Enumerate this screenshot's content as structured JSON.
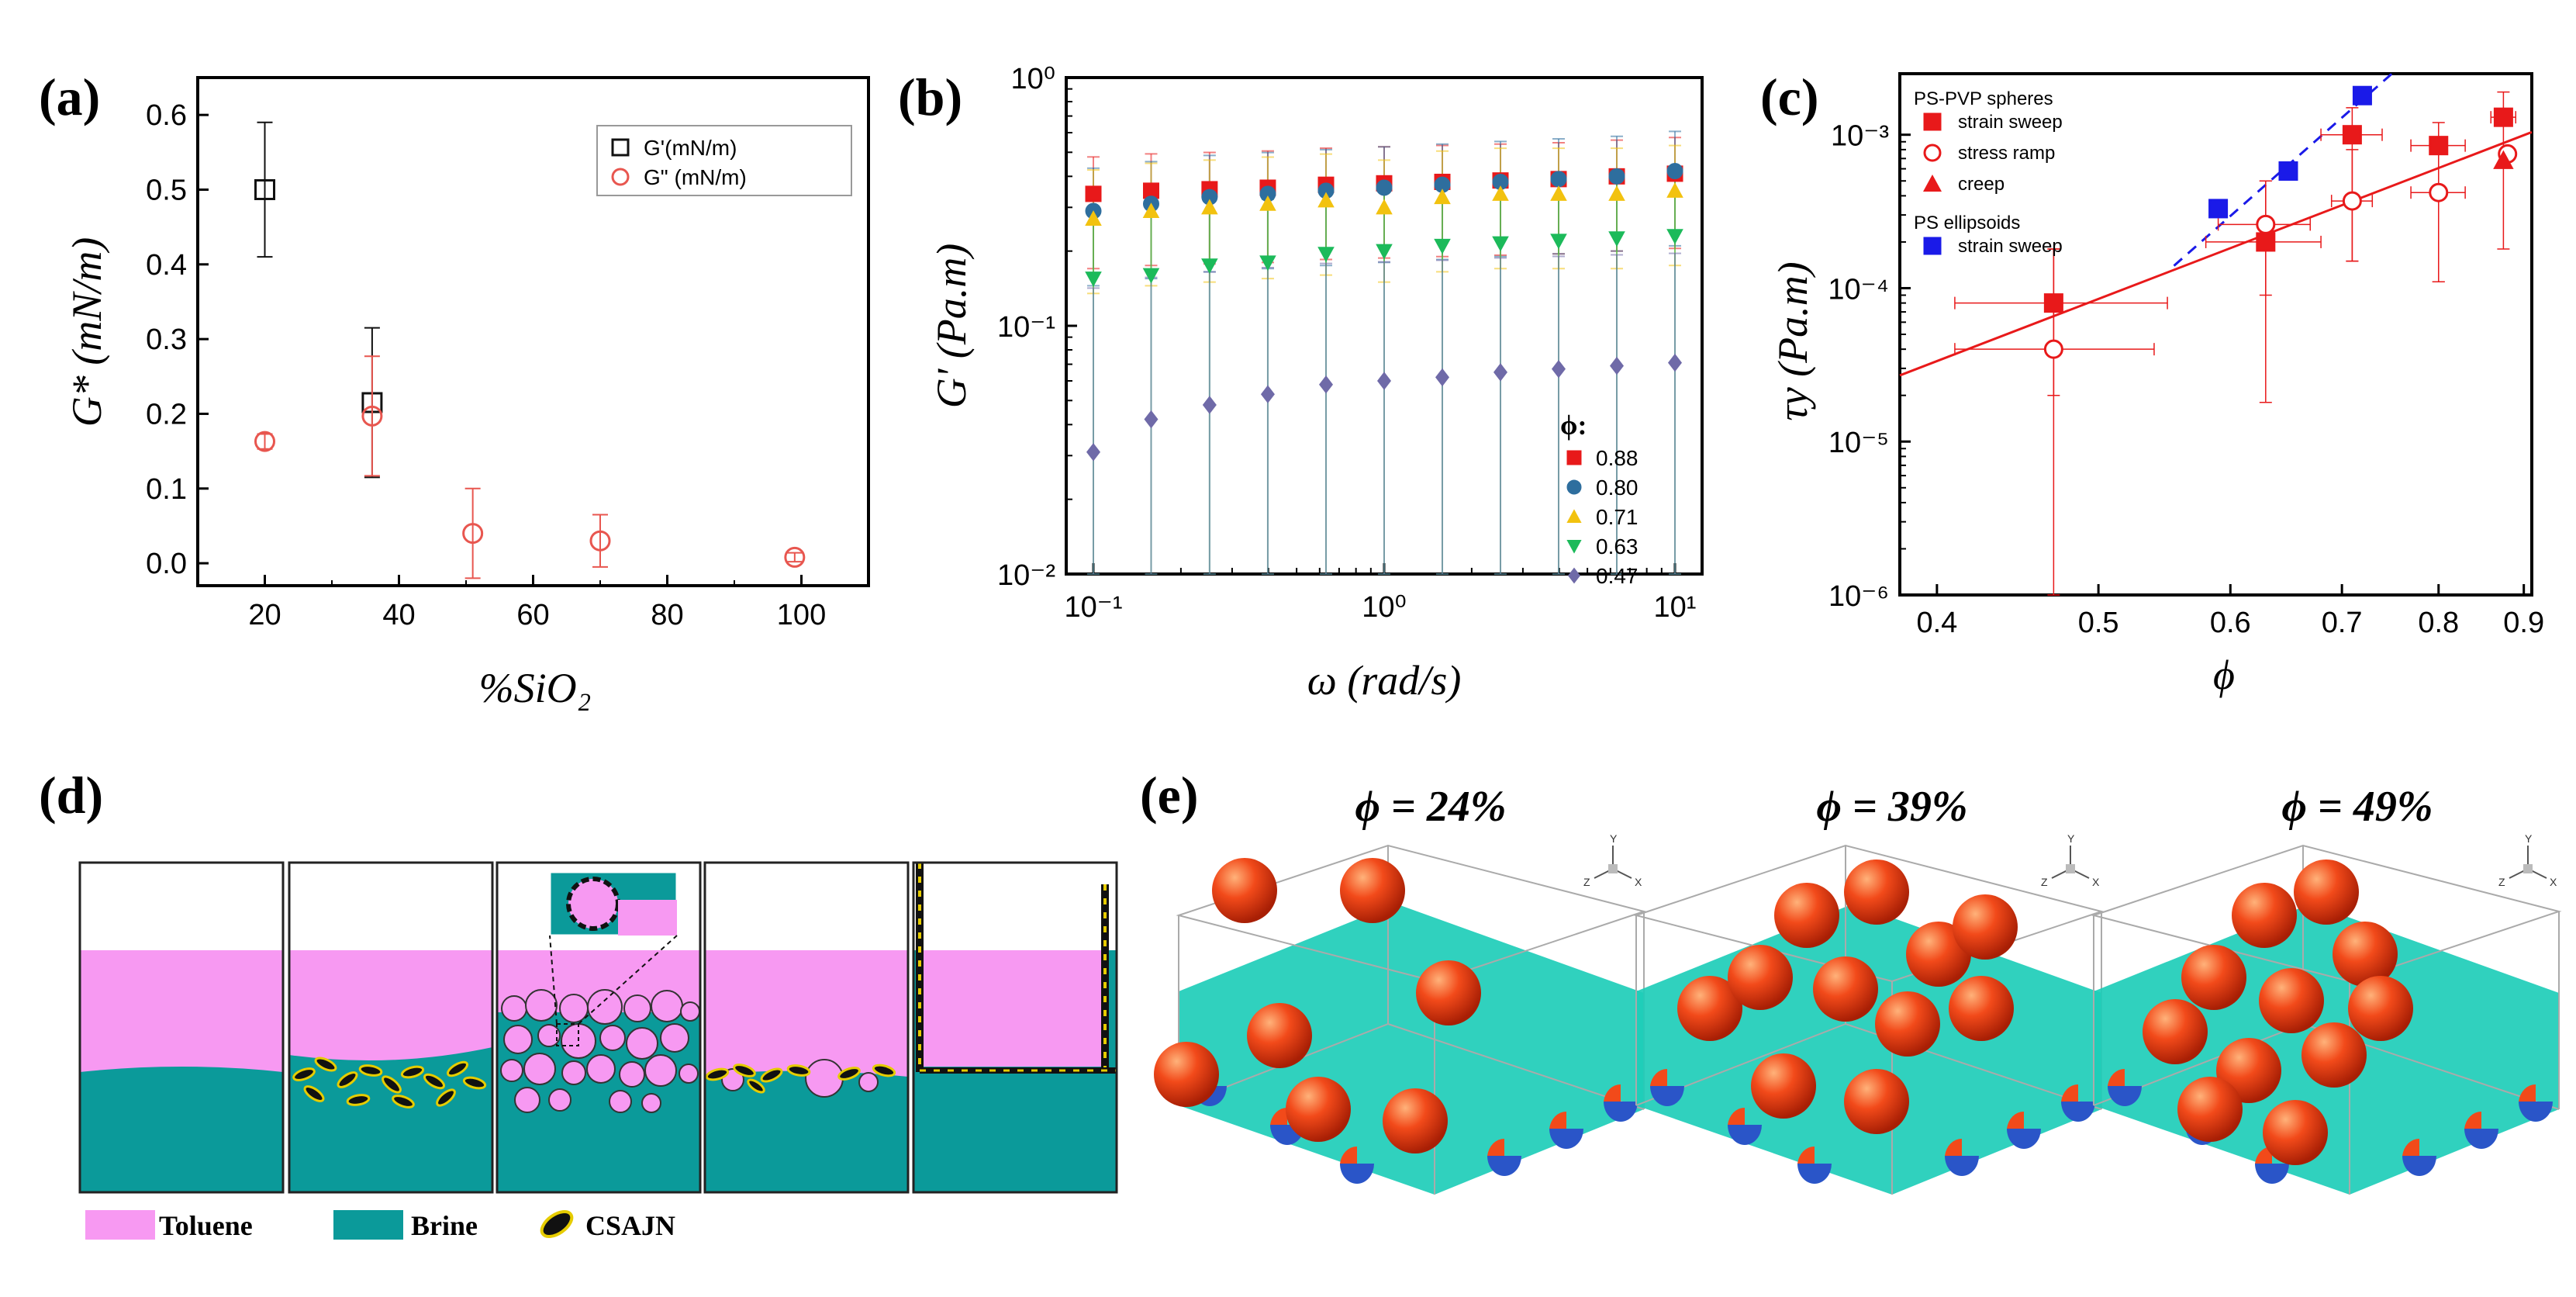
{
  "panels": {
    "a": "(a)",
    "b": "(b)",
    "c": "(c)",
    "d": "(d)",
    "e": "(e)"
  },
  "chart_data": [
    {
      "id": "a",
      "type": "scatter",
      "xlabel": "%SiO₂",
      "ylabel": "G* (mN/m)",
      "xlim": [
        10,
        110
      ],
      "ylim": [
        -0.03,
        0.65
      ],
      "xticks": [
        "20",
        "40",
        "60",
        "80",
        "100"
      ],
      "yticks": [
        "0.0",
        "0.1",
        "0.2",
        "0.3",
        "0.4",
        "0.5",
        "0.6"
      ],
      "legend": [
        "G'(mN/m)",
        "G\" (mN/m)"
      ],
      "series": [
        {
          "name": "G'(mN/m)",
          "color": "#111111",
          "marker": "square",
          "x": [
            20,
            36
          ],
          "y": [
            0.5,
            0.215
          ],
          "err": [
            0.09,
            0.1
          ]
        },
        {
          "name": "G\" (mN/m)",
          "color": "#e8564f",
          "marker": "circle",
          "x": [
            20,
            36,
            51,
            70,
            99
          ],
          "y": [
            0.163,
            0.197,
            0.04,
            0.03,
            0.008
          ],
          "err": [
            0.01,
            0.08,
            0.06,
            0.035,
            0.006
          ]
        }
      ]
    },
    {
      "id": "b",
      "type": "scatter",
      "xlabel": "ω (rad/s)",
      "ylabel": "G' (Pa.m)",
      "xscale": "log",
      "yscale": "log",
      "xlim": [
        0.1,
        10
      ],
      "ylim": [
        0.01,
        1
      ],
      "xticks": [
        "10⁻¹",
        "10⁰",
        "10¹"
      ],
      "yticks": [
        "10⁻²",
        "10⁻¹",
        "10⁰"
      ],
      "legend_title": "ϕ:",
      "x": [
        0.1,
        0.158,
        0.251,
        0.398,
        0.631,
        1.0,
        1.585,
        2.512,
        3.981,
        6.31,
        10.0
      ],
      "series": [
        {
          "name": "0.88",
          "color": "#e8191a",
          "marker": "square",
          "values": [
            0.34,
            0.35,
            0.355,
            0.36,
            0.37,
            0.375,
            0.38,
            0.385,
            0.39,
            0.4,
            0.41
          ]
        },
        {
          "name": "0.80",
          "color": "#2e6e9e",
          "marker": "circle",
          "values": [
            0.29,
            0.31,
            0.33,
            0.34,
            0.35,
            0.36,
            0.37,
            0.38,
            0.39,
            0.4,
            0.42
          ]
        },
        {
          "name": "0.71",
          "color": "#f2c20f",
          "marker": "triangle-up",
          "values": [
            0.27,
            0.29,
            0.3,
            0.31,
            0.32,
            0.3,
            0.33,
            0.34,
            0.34,
            0.34,
            0.35
          ]
        },
        {
          "name": "0.63",
          "color": "#1cba5a",
          "marker": "triangle-down",
          "values": [
            0.155,
            0.16,
            0.175,
            0.18,
            0.195,
            0.2,
            0.21,
            0.215,
            0.22,
            0.225,
            0.23
          ]
        },
        {
          "name": "0.47",
          "color": "#6f6aa8",
          "marker": "diamond",
          "values": [
            0.031,
            0.042,
            0.048,
            0.053,
            0.058,
            0.06,
            0.062,
            0.065,
            0.067,
            0.069,
            0.071
          ]
        }
      ]
    },
    {
      "id": "c",
      "type": "scatter",
      "xlabel": "ϕ",
      "ylabel": "τy (Pa.m)",
      "xscale": "log",
      "yscale": "log",
      "xlim": [
        0.38,
        0.91
      ],
      "ylim": [
        1e-06,
        0.0025
      ],
      "xticks": [
        "0.4",
        "0.5",
        "0.6",
        "0.7",
        "0.8",
        "0.9"
      ],
      "yticks": [
        "10⁻⁶",
        "10⁻⁵",
        "10⁻⁴",
        "10⁻³"
      ],
      "legend_groups": [
        "PS-PVP spheres",
        "PS ellipsoids"
      ],
      "series": [
        {
          "name": "strain sweep",
          "group": "PS-PVP spheres",
          "color": "#e8191a",
          "marker": "square",
          "x": [
            0.47,
            0.63,
            0.71,
            0.8,
            0.875
          ],
          "y": [
            8e-05,
            0.0002,
            0.001,
            0.00085,
            0.0013
          ]
        },
        {
          "name": "stress ramp",
          "group": "PS-PVP spheres",
          "color": "#e8191a",
          "marker": "circle-open",
          "x": [
            0.47,
            0.63,
            0.71,
            0.8,
            0.88
          ],
          "y": [
            4e-05,
            0.00026,
            0.00037,
            0.00042,
            0.00075
          ]
        },
        {
          "name": "creep",
          "group": "PS-PVP spheres",
          "color": "#e8191a",
          "marker": "triangle",
          "x": [
            0.875
          ],
          "y": [
            0.00068
          ]
        },
        {
          "name": "strain sweep",
          "group": "PS ellipsoids",
          "color": "#1a1ae8",
          "marker": "square",
          "x": [
            0.59,
            0.65,
            0.72
          ],
          "y": [
            0.00033,
            0.00058,
            0.0018
          ]
        }
      ],
      "fits": [
        {
          "color": "#e8191a",
          "style": "solid",
          "x": [
            0.38,
            0.91
          ],
          "y": [
            2.7e-05,
            0.00104
          ]
        },
        {
          "color": "#1a1ae8",
          "style": "dashed",
          "x": [
            0.555,
            0.75
          ],
          "y": [
            0.00014,
            0.0025
          ]
        }
      ]
    }
  ],
  "panel_d": {
    "legend": {
      "toluene": "Toluene",
      "brine": "Brine",
      "particle": "CSAJN"
    },
    "colors": {
      "toluene": "#f799f2",
      "brine": "#0b9a9a",
      "particle": "#111111",
      "rim": "#e6cc00"
    }
  },
  "panel_e": {
    "titles": [
      "ϕ = 24%",
      "ϕ = 39%",
      "ϕ = 49%"
    ],
    "axis_labels": {
      "x": "X",
      "y": "Y",
      "z": "Z"
    },
    "colors": {
      "plane": "#1ecdb8",
      "sphere": "#f24a1a",
      "cap": "#2a55c8"
    }
  }
}
